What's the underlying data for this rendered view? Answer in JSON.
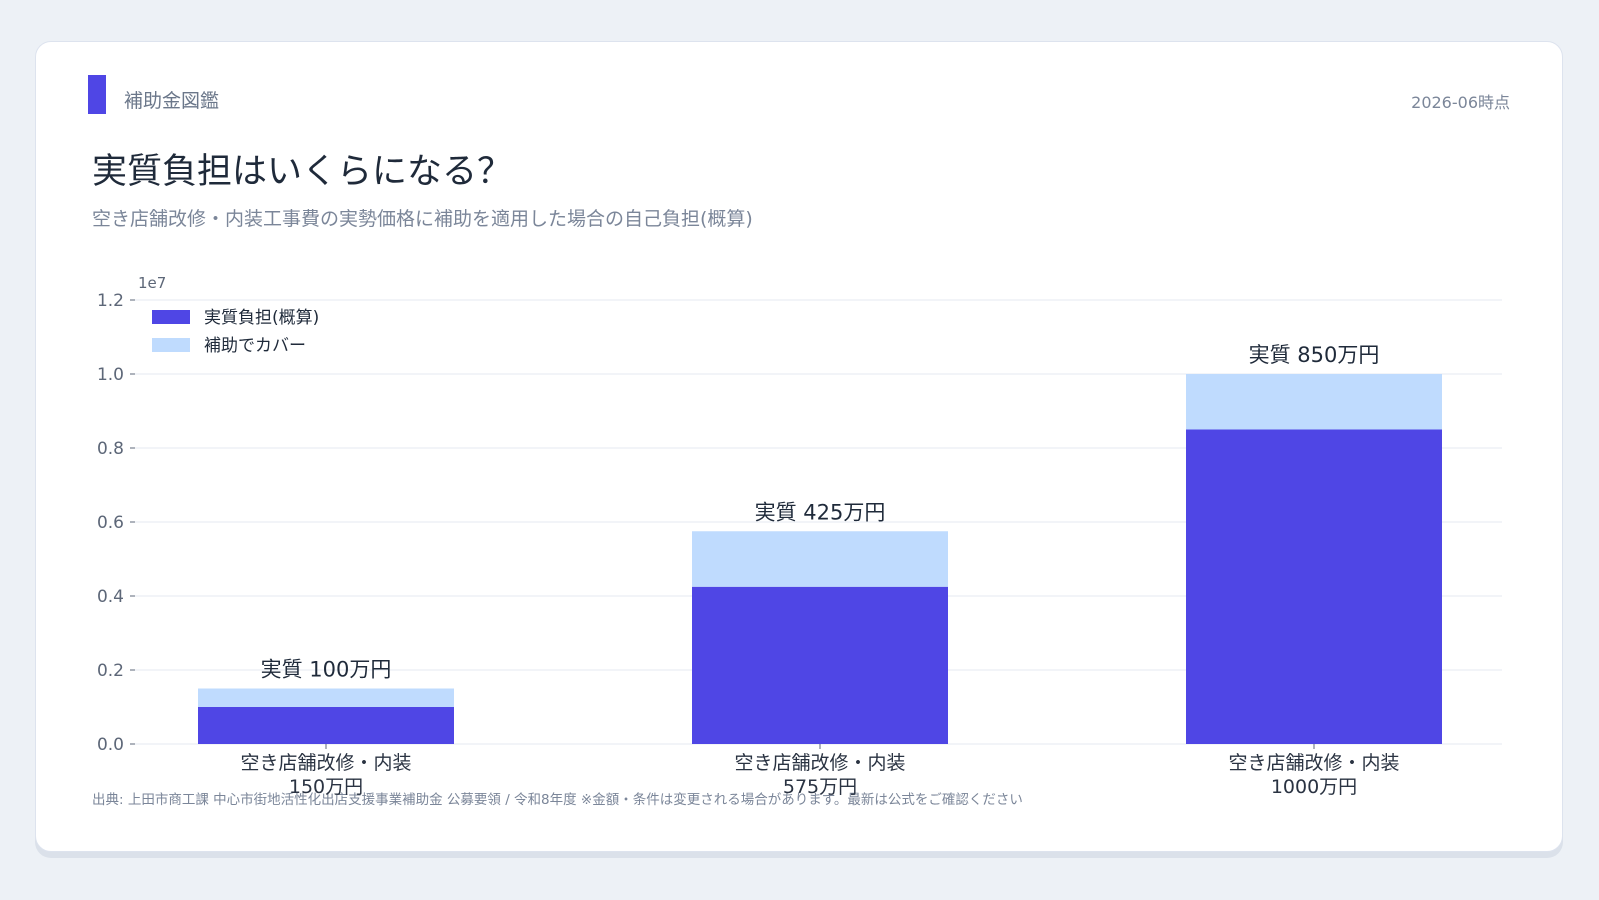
{
  "header": {
    "brand": "補助金図鑑",
    "as_of": "2026-06時点",
    "title": "実質負担はいくらになる？",
    "subtitle": "空き店舗改修・内装工事費の実勢価格に補助を適用した場合の自己負担(概算)"
  },
  "footer": {
    "source": "出典: 上田市商工課 中心市街地活性化出店支援事業補助金 公募要領 / 令和8年度 ※金額・条件は変更される場合があります。最新は公式をご確認ください"
  },
  "colors": {
    "accent": "#4f46e5",
    "burden": "#4f46e5",
    "covered": "#bfdbfe",
    "grid": "#e6eaf0"
  },
  "chart_data": {
    "type": "bar",
    "stacked": true,
    "categories": [
      [
        "空き店舗改修・内装",
        "150万円"
      ],
      [
        "空き店舗改修・内装",
        "575万円"
      ],
      [
        "空き店舗改修・内装",
        "1000万円"
      ]
    ],
    "series": [
      {
        "name": "実質負担(概算)",
        "color": "#4f46e5",
        "values": [
          1000000,
          4250000,
          8500000
        ]
      },
      {
        "name": "補助でカバー",
        "color": "#bfdbfe",
        "values": [
          500000,
          1500000,
          1500000
        ]
      }
    ],
    "bar_labels": [
      "実質 100万円",
      "実質 425万円",
      "実質 850万円"
    ],
    "ylim": [
      0,
      12000000
    ],
    "yticks": [
      0,
      2000000,
      4000000,
      6000000,
      8000000,
      10000000,
      12000000
    ],
    "ytick_labels": [
      "0.0",
      "0.2",
      "0.4",
      "0.6",
      "0.8",
      "1.0",
      "1.2"
    ],
    "y_offset_label": "1e7",
    "grid": true,
    "legend_position": "top-left"
  }
}
